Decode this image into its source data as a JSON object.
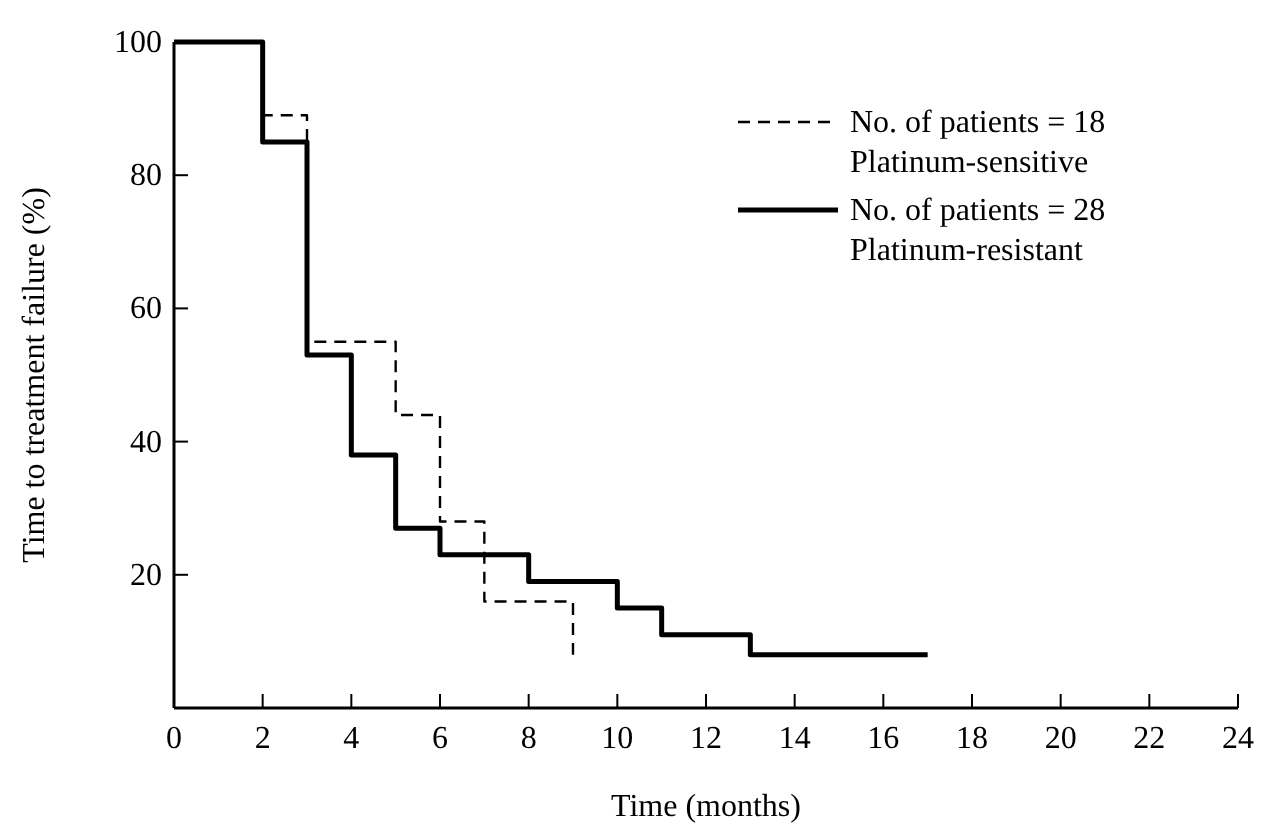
{
  "chart_data": {
    "type": "step",
    "xlabel": "Time (months)",
    "ylabel": "Time to treatment failure (%)",
    "xlim": [
      0,
      24
    ],
    "xticks": [
      0,
      2,
      4,
      6,
      8,
      10,
      12,
      14,
      16,
      18,
      20,
      22,
      24
    ],
    "ylim": [
      0,
      100
    ],
    "yticks": [
      20,
      40,
      60,
      80,
      100
    ],
    "legend": "top right",
    "grid": false,
    "series": [
      {
        "name": "No. of patients = 18\nPlatinum-sensitive",
        "color": "#000000",
        "line_style": "dashed",
        "x": [
          0,
          2,
          3,
          5,
          6,
          7,
          9
        ],
        "values": [
          100,
          89,
          55,
          44,
          28,
          16,
          8
        ]
      },
      {
        "name": "No. of patients = 28\nPlatinum-resistant",
        "color": "#000000",
        "line_style": "solid",
        "x": [
          0,
          2,
          3,
          4,
          5,
          6,
          8,
          10,
          11,
          13,
          17
        ],
        "values": [
          100,
          85,
          53,
          38,
          27,
          23,
          19,
          15,
          11,
          8,
          8
        ]
      }
    ]
  }
}
